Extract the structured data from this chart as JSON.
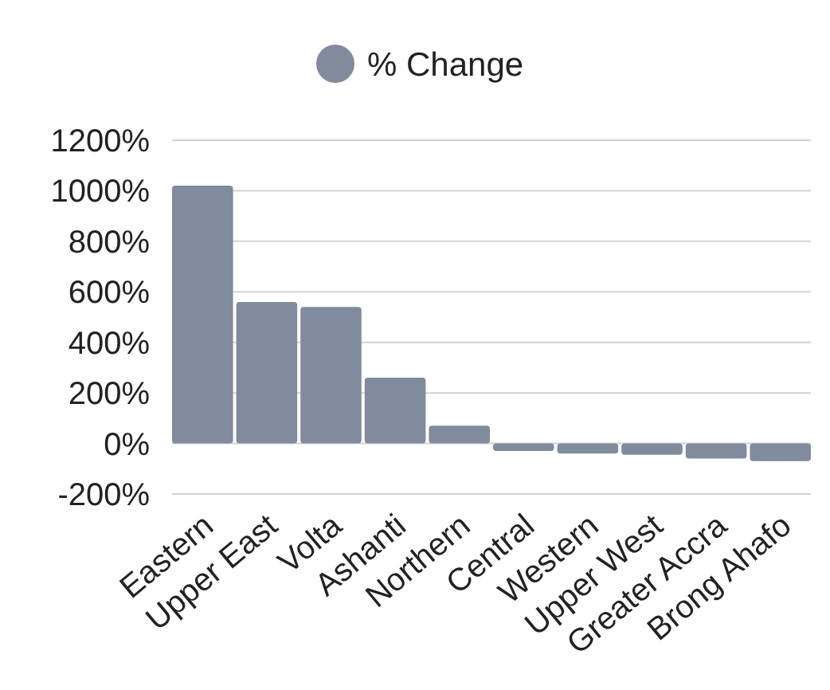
{
  "chart_data": {
    "type": "bar",
    "categories": [
      "Eastern",
      "Upper East",
      "Volta",
      "Ashanti",
      "Northern",
      "Central",
      "Western",
      "Upper West",
      "Greater Accra",
      "Brong Ahafo"
    ],
    "series": [
      {
        "name": "% Change",
        "color": "#808b9d",
        "values": [
          1020,
          560,
          540,
          260,
          70,
          -30,
          -40,
          -45,
          -60,
          -70
        ]
      }
    ],
    "ylim": [
      -200,
      1200
    ],
    "yticks": [
      {
        "value": -200,
        "label": "-200%"
      },
      {
        "value": 0,
        "label": "0%"
      },
      {
        "value": 200,
        "label": "200%"
      },
      {
        "value": 400,
        "label": "400%"
      },
      {
        "value": 600,
        "label": "600%"
      },
      {
        "value": 800,
        "label": "800%"
      },
      {
        "value": 1000,
        "label": "1000%"
      },
      {
        "value": 1200,
        "label": "1200%"
      }
    ],
    "grid": "y",
    "legend": "top"
  }
}
